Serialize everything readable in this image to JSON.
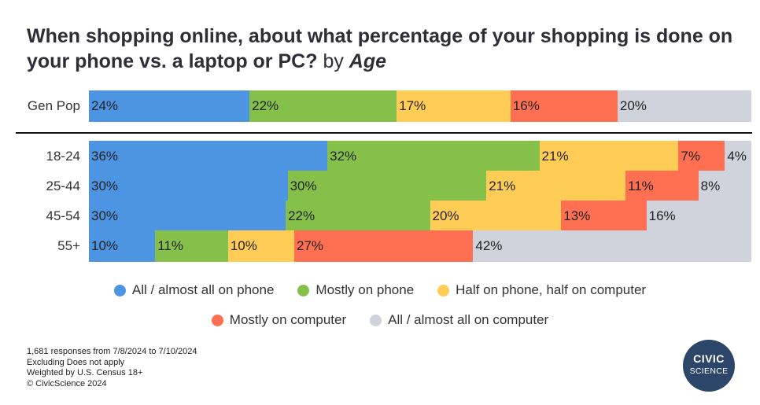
{
  "title": {
    "main": "When shopping online, about what percentage of your shopping is done on your phone vs. a laptop or PC?",
    "by": "by",
    "dimension": "Age"
  },
  "chart_data": {
    "type": "bar",
    "orientation": "horizontal",
    "stacked": true,
    "normalized": true,
    "categories": [
      "Gen Pop",
      "18-24",
      "25-44",
      "45-54",
      "55+"
    ],
    "series": [
      {
        "name": "All / almost all on phone",
        "color": "#4d94e2",
        "values": [
          24,
          36,
          30,
          30,
          10
        ],
        "labels": [
          "24%",
          "36%",
          "30%",
          "30%",
          "10%"
        ]
      },
      {
        "name": "Mostly on phone",
        "color": "#85c04b",
        "values": [
          22,
          32,
          30,
          22,
          11
        ],
        "labels": [
          "22%",
          "32%",
          "30%",
          "22%",
          "11%"
        ]
      },
      {
        "name": "Half on phone, half on computer",
        "color": "#ffcc55",
        "values": [
          17,
          21,
          21,
          20,
          10
        ],
        "labels": [
          "17%",
          "21%",
          "21%",
          "20%",
          "10%"
        ]
      },
      {
        "name": "Mostly on computer",
        "color": "#ff6f52",
        "values": [
          16,
          7,
          11,
          13,
          27
        ],
        "labels": [
          "16%",
          "7%",
          "11%",
          "13%",
          "27%"
        ]
      },
      {
        "name": "All / almost all on computer",
        "color": "#d0d3dc",
        "values": [
          20,
          4,
          8,
          16,
          42
        ],
        "labels": [
          "20%",
          "4%",
          "8%",
          "16%",
          "42%"
        ]
      }
    ],
    "legend_position": "bottom"
  },
  "legend": {
    "rows": [
      [
        0,
        1,
        2
      ],
      [
        3,
        4
      ]
    ]
  },
  "footnotes": [
    "1,681 responses from 7/8/2024 to 7/10/2024",
    "Excluding Does not apply",
    "Weighted by U.S. Census 18+",
    "© CivicScience 2024"
  ],
  "logo": {
    "line1": "CIVIC",
    "line2": "SCIENCE"
  }
}
